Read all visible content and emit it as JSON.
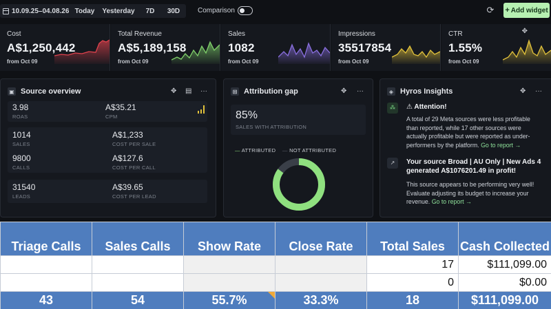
{
  "toolbar": {
    "date_range": "10.09.25–04.08.26",
    "presets": [
      "Today",
      "Yesterday",
      "7D",
      "30D"
    ],
    "comparison_label": "Comparison",
    "comparison_on": false,
    "add_widget_label": "Add widget"
  },
  "kpis": [
    {
      "label": "Cost",
      "value": "A$1,250,442",
      "sub": "from Oct 09",
      "color": "#e0424d"
    },
    {
      "label": "Total Revenue",
      "value": "A$5,189,158",
      "sub": "from Oct 09",
      "color": "#7fd06a"
    },
    {
      "label": "Sales",
      "value": "1082",
      "sub": "from Oct 09",
      "color": "#8a6fe0"
    },
    {
      "label": "Impressions",
      "value": "35517854",
      "sub": "from Oct 09",
      "color": "#e2c23b"
    },
    {
      "label": "CTR",
      "value": "1.55%",
      "sub": "from Oct 09",
      "color": "#e2c23b"
    }
  ],
  "source_overview": {
    "title": "Source overview",
    "metrics": [
      {
        "value": "3.98",
        "label": "ROAS"
      },
      {
        "value": "A$35.21",
        "label": "CPM"
      },
      {
        "value": "1014",
        "label": "SALES"
      },
      {
        "value": "A$1,233",
        "label": "COST PER SALE"
      },
      {
        "value": "9800",
        "label": "CALLS"
      },
      {
        "value": "A$127.6",
        "label": "COST PER CALL"
      },
      {
        "value": "31540",
        "label": "LEADS"
      },
      {
        "value": "A$39.65",
        "label": "COST PER LEAD"
      }
    ]
  },
  "attribution_gap": {
    "title": "Attribution gap",
    "percent": "85%",
    "percent_label": "SALES WITH ATTRIBUTION",
    "legend": [
      "ATTRIBUTED",
      "NOT ATTRIBUTED"
    ],
    "attributed_fraction": 0.85,
    "colors": {
      "attributed": "#8fe07f",
      "not_attributed": "#3a3f48"
    }
  },
  "insights": {
    "title": "Hyros Insights",
    "items": [
      {
        "title": "⚠ Attention!",
        "body": "A total of 29 Meta sources were less profitable than reported, while 17 other sources were actually profitable but were reported as under-performers by the platform.",
        "link": "Go to report →"
      },
      {
        "title": "Your source Broad | AU Only | New Ads 4 generated A$1076201.49 in profit!",
        "body": "This source appears to be performing very well! Evaluate adjusting its budget to increase your revenue.",
        "link": "Go to report →"
      }
    ]
  },
  "sheet": {
    "headers": [
      "Triage Calls",
      "Sales Calls",
      "Show Rate",
      "Close Rate",
      "Total Sales",
      "Cash Collected"
    ],
    "rows": [
      [
        "",
        "",
        "",
        "",
        "17",
        "$111,099.00"
      ],
      [
        "",
        "",
        "",
        "",
        "0",
        "$0.00"
      ]
    ],
    "totals": [
      "43",
      "54",
      "55.7%",
      "33.3%",
      "18",
      "$111,099.00"
    ]
  }
}
